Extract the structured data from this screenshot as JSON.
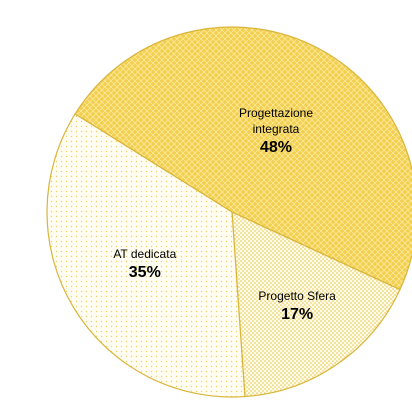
{
  "chart_data": {
    "type": "pie",
    "categories": [
      "Progettazione integrata",
      "Progetto Sfera",
      "AT dedicata"
    ],
    "values": [
      48,
      17,
      35
    ],
    "value_labels": [
      "48%",
      "17%",
      "35%"
    ],
    "colors": [
      "#f3cf4f",
      "#fbeda8",
      "#fdf6d2"
    ],
    "start_angle": -148
  }
}
